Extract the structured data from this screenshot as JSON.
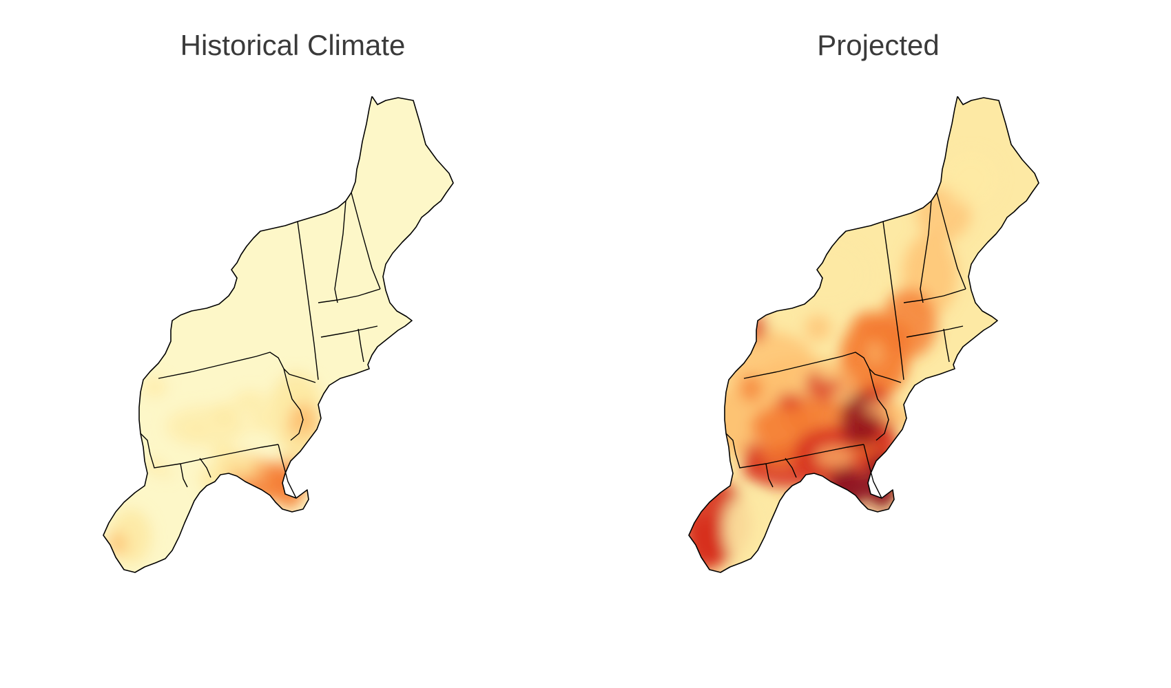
{
  "panels": [
    {
      "id": "historical",
      "title": "Historical Climate",
      "palette": "historical"
    },
    {
      "id": "projected",
      "title": "Projected",
      "palette": "projected"
    }
  ],
  "colors": {
    "very_low": "#fdf7c8",
    "low": "#fde9a4",
    "medium": "#fdbf6f",
    "high": "#f4792e",
    "very_high": "#d7301f",
    "extreme": "#8b1020",
    "border": "#000000"
  }
}
